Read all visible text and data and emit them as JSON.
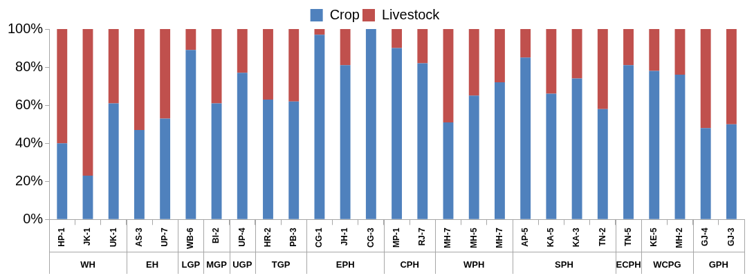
{
  "chart_data": {
    "type": "bar",
    "stacked": true,
    "legend": "top",
    "grid": false,
    "categories": [
      "HP-1",
      "JK-1",
      "UK-1",
      "AS-3",
      "UP-7",
      "WB-6",
      "BI-2",
      "UP-4",
      "HR-2",
      "PB-3",
      "CG-1",
      "JH-1",
      "CG-3",
      "MP-1",
      "RJ-7",
      "MH-7",
      "MH-5",
      "MH-7",
      "AP-5",
      "KA-5",
      "KA-3",
      "TN-2",
      "TN-5",
      "KE-5",
      "MH-2",
      "GJ-4",
      "GJ-3"
    ],
    "series": [
      {
        "name": "Crop",
        "color": "#4f81bd",
        "values": [
          40,
          23,
          61,
          47,
          53,
          89,
          61,
          77,
          63,
          62,
          97,
          81,
          100,
          90,
          82,
          51,
          65,
          72,
          85,
          66,
          74,
          58,
          81,
          78,
          76,
          48,
          50
        ]
      },
      {
        "name": "Livestock",
        "color": "#c0504d",
        "values": [
          60,
          77,
          39,
          53,
          47,
          11,
          39,
          23,
          37,
          38,
          3,
          19,
          0,
          10,
          18,
          49,
          35,
          28,
          15,
          34,
          26,
          42,
          19,
          22,
          24,
          52,
          50
        ]
      }
    ],
    "ylim": [
      0,
      100
    ],
    "yticks": [
      {
        "value": 0,
        "label": "0%"
      },
      {
        "value": 20,
        "label": "20%"
      },
      {
        "value": 40,
        "label": "40%"
      },
      {
        "value": 60,
        "label": "60%"
      },
      {
        "value": 80,
        "label": "80%"
      },
      {
        "value": 100,
        "label": "100%"
      }
    ],
    "annotations": [
      "WH",
      "EH",
      "LGP",
      "MGP",
      "UGP",
      "TGP",
      "EPH",
      "CPH",
      "WPH",
      "SPH",
      "ECPH",
      "WCPG",
      "GPH"
    ]
  }
}
